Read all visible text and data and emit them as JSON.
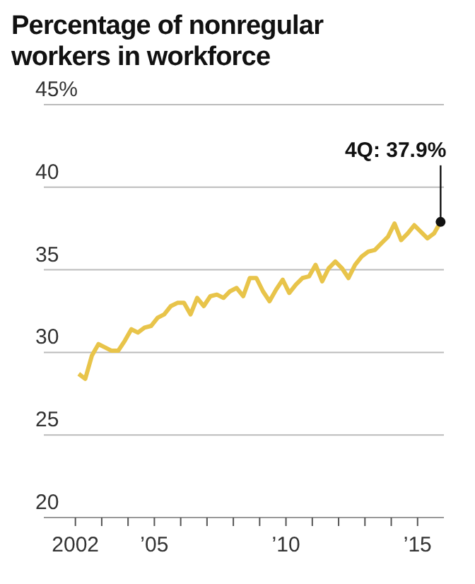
{
  "chart_data": {
    "type": "line",
    "title": "Percentage of nonregular workers in workforce",
    "x": [
      2002.125,
      2002.375,
      2002.625,
      2002.875,
      2003.125,
      2003.375,
      2003.625,
      2003.875,
      2004.125,
      2004.375,
      2004.625,
      2004.875,
      2005.125,
      2005.375,
      2005.625,
      2005.875,
      2006.125,
      2006.375,
      2006.625,
      2006.875,
      2007.125,
      2007.375,
      2007.625,
      2007.875,
      2008.125,
      2008.375,
      2008.625,
      2008.875,
      2009.125,
      2009.375,
      2009.625,
      2009.875,
      2010.125,
      2010.375,
      2010.625,
      2010.875,
      2011.125,
      2011.375,
      2011.625,
      2011.875,
      2012.125,
      2012.375,
      2012.625,
      2012.875,
      2013.125,
      2013.375,
      2013.625,
      2013.875,
      2014.125,
      2014.375,
      2014.625,
      2014.875,
      2015.125,
      2015.375,
      2015.625,
      2015.875
    ],
    "series": [
      {
        "color": "#e8c44a",
        "values": [
          28.7,
          28.4,
          29.8,
          30.5,
          30.3,
          30.1,
          30.1,
          30.7,
          31.4,
          31.2,
          31.5,
          31.6,
          32.1,
          32.3,
          32.8,
          33.0,
          33.0,
          32.3,
          33.3,
          32.8,
          33.4,
          33.5,
          33.3,
          33.7,
          33.9,
          33.4,
          34.5,
          34.5,
          33.7,
          33.1,
          33.8,
          34.4,
          33.6,
          34.1,
          34.5,
          34.6,
          35.3,
          34.3,
          35.1,
          35.5,
          35.1,
          34.5,
          35.3,
          35.8,
          36.1,
          36.2,
          36.6,
          37.0,
          37.8,
          36.8,
          37.2,
          37.7,
          37.3,
          36.9,
          37.2,
          37.9
        ]
      }
    ],
    "xlim": [
      2000.8,
      2016
    ],
    "xticks": [
      {
        "value": 2002,
        "label": "2002"
      },
      {
        "value": 2003,
        "label": null
      },
      {
        "value": 2004,
        "label": null
      },
      {
        "value": 2005,
        "label": "’05"
      },
      {
        "value": 2006,
        "label": null
      },
      {
        "value": 2007,
        "label": null
      },
      {
        "value": 2008,
        "label": null
      },
      {
        "value": 2009,
        "label": null
      },
      {
        "value": 2010,
        "label": "’10"
      },
      {
        "value": 2011,
        "label": null
      },
      {
        "value": 2012,
        "label": null
      },
      {
        "value": 2013,
        "label": null
      },
      {
        "value": 2014,
        "label": null
      },
      {
        "value": 2015,
        "label": "’15"
      }
    ],
    "ylim": [
      20,
      45
    ],
    "yticks": [
      20,
      25,
      30,
      35,
      40,
      {
        "value": 45,
        "label": "45%"
      }
    ],
    "grid": "y",
    "marker": "none",
    "line_style": "solid",
    "annotations": [
      {
        "text": "4Q: 37.9%",
        "x": 2015.875,
        "y": 37.9
      }
    ]
  }
}
